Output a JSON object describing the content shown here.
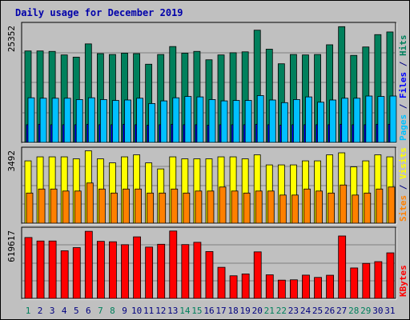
{
  "chart_data": {
    "type": "bar",
    "title": "Daily usage for December 2019",
    "categories": [
      "1",
      "2",
      "3",
      "4",
      "5",
      "6",
      "7",
      "8",
      "9",
      "10",
      "11",
      "12",
      "13",
      "14",
      "15",
      "16",
      "17",
      "18",
      "19",
      "20",
      "21",
      "22",
      "23",
      "24",
      "25",
      "26",
      "27",
      "28",
      "29",
      "30",
      "31"
    ],
    "weekend_days": [
      "1",
      "7",
      "8",
      "14",
      "15",
      "21",
      "22",
      "28",
      "29"
    ],
    "colors": {
      "hits": "#00805c",
      "files": "#0000ff",
      "pages": "#00c0ff",
      "visits": "#ffff00",
      "sites": "#ff8000",
      "kbytes": "#ff0000",
      "title": "#0000aa",
      "weekday_label": "#000080",
      "weekend_label": "#00805c",
      "panel_bg": "#c0c0c0",
      "gridline": "#808080"
    },
    "panels": [
      {
        "id": "hits_files_pages",
        "max_label": "25352",
        "ymax": 26800,
        "legend": [
          {
            "text": "Pages",
            "color": "#00c0ff"
          },
          {
            "text": " / ",
            "color": "#000080"
          },
          {
            "text": "Files",
            "color": "#0000ff"
          },
          {
            "text": " / ",
            "color": "#000080"
          },
          {
            "text": "Hits",
            "color": "#00805c"
          }
        ],
        "series": [
          {
            "name": "Hits",
            "color": "#00805c",
            "values": [
              20700,
              20700,
              20600,
              19800,
              19300,
              22300,
              20100,
              19900,
              20200,
              20100,
              17700,
              19900,
              21700,
              20200,
              20600,
              18700,
              19800,
              20300,
              20500,
              25400,
              21100,
              17800,
              19900,
              19800,
              19900,
              22100,
              26200,
              19700,
              21600,
              24400,
              25000
            ]
          },
          {
            "name": "Files",
            "color": "#0000ff",
            "values": [
              4000,
              4100,
              4000,
              4000,
              4000,
              4100,
              4000,
              4000,
              4100,
              4000,
              3900,
              4000,
              4100,
              4000,
              4000,
              3900,
              4000,
              4000,
              4000,
              4100,
              4000,
              3900,
              4000,
              4000,
              4000,
              4000,
              4100,
              4000,
              4000,
              4100,
              4100
            ]
          },
          {
            "name": "Pages",
            "color": "#00c0ff",
            "values": [
              10100,
              10000,
              10000,
              10000,
              9700,
              10100,
              9700,
              9500,
              9600,
              10000,
              8800,
              9400,
              10100,
              10400,
              10300,
              9700,
              9400,
              9500,
              9500,
              10600,
              9600,
              9000,
              9700,
              10300,
              9100,
              9600,
              10000,
              10000,
              10500,
              10400,
              10500
            ]
          }
        ]
      },
      {
        "id": "visits_sites",
        "max_label": "3492",
        "ymax": 3700,
        "legend": [
          {
            "text": "Sites",
            "color": "#ff8000"
          },
          {
            "text": " / ",
            "color": "#000080"
          },
          {
            "text": "Visits",
            "color": "#ffff00"
          }
        ],
        "series": [
          {
            "name": "Visits",
            "color": "#ffff00",
            "values": [
              3100,
              3300,
              3300,
              3300,
              3200,
              3600,
              3200,
              3000,
              3300,
              3400,
              3000,
              2700,
              3300,
              3200,
              3200,
              3200,
              3300,
              3300,
              3200,
              3400,
              2900,
              2900,
              2900,
              3100,
              3100,
              3400,
              3500,
              2800,
              3100,
              3400,
              3300
            ]
          },
          {
            "name": "Sites",
            "color": "#ff8000",
            "values": [
              1500,
              1700,
              1700,
              1600,
              1600,
              2000,
              1700,
              1500,
              1700,
              1700,
              1500,
              1500,
              1700,
              1500,
              1600,
              1600,
              1800,
              1600,
              1500,
              1600,
              1600,
              1400,
              1400,
              1700,
              1600,
              1500,
              1900,
              1400,
              1500,
              1700,
              1800
            ]
          }
        ]
      },
      {
        "id": "kbytes",
        "max_label": "619617",
        "ymax": 640000,
        "legend": [
          {
            "text": "KBytes",
            "color": "#ff0000"
          }
        ],
        "series": [
          {
            "name": "KBytes",
            "color": "#ff0000",
            "values": [
              560000,
              528000,
              528000,
              438000,
              467000,
              617000,
              525000,
              521000,
              494000,
              566000,
              472000,
              498000,
              619617,
              495000,
              516000,
              431000,
              286000,
              208000,
              225000,
              428000,
              217000,
              168000,
              171000,
              214000,
              193000,
              213000,
              574000,
              280000,
              322000,
              338000,
              419000
            ]
          }
        ]
      }
    ]
  }
}
